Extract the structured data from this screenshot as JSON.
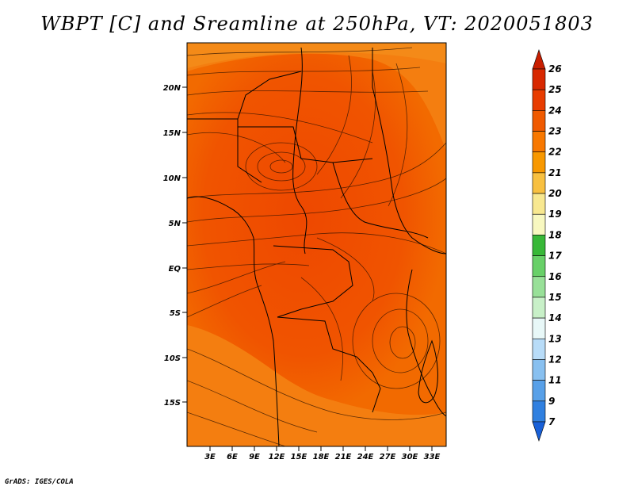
{
  "title": "WBPT [C] and Sreamline at 250hPa, VT: 2020051803",
  "credit": "GrADS: IGES/COLA",
  "map": {
    "lon_labels": [
      "3E",
      "6E",
      "9E",
      "12E",
      "15E",
      "18E",
      "21E",
      "24E",
      "27E",
      "30E",
      "33E"
    ],
    "lat_labels": [
      "20N",
      "15N",
      "10N",
      "5N",
      "EQ",
      "5S",
      "10S",
      "15S"
    ]
  },
  "colorbar": {
    "labels": [
      "26",
      "25",
      "24",
      "23",
      "22",
      "21",
      "20",
      "19",
      "18",
      "17",
      "16",
      "15",
      "14",
      "13",
      "12",
      "11",
      "9",
      "7"
    ],
    "colors": [
      "#c81e00",
      "#d82800",
      "#e83c00",
      "#f05a00",
      "#f87800",
      "#f89800",
      "#f8c040",
      "#f8e890",
      "#f8f8c0",
      "#38b838",
      "#68d068",
      "#98e098",
      "#c8f0c8",
      "#e8f8f8",
      "#b8dcf8",
      "#88c0f0",
      "#58a0e8",
      "#3080e0",
      "#1860d8"
    ]
  }
}
